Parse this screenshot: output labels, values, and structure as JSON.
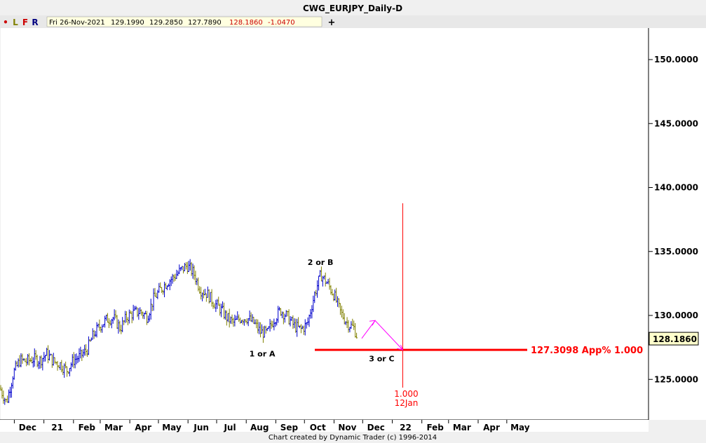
{
  "title": "CWG_EURJPY_Daily-D",
  "toolbar": {
    "buttons": [
      {
        "label": "•",
        "color": "#cc0000"
      },
      {
        "label": "L",
        "color": "#808000"
      },
      {
        "label": "F",
        "color": "#cc0000"
      },
      {
        "label": "R",
        "color": "#000080"
      }
    ],
    "quote": {
      "date": "Fri 26-Nov-2021",
      "open": "129.1990",
      "high": "129.2850",
      "low": "127.7890",
      "close": "128.1860",
      "change": "-1.0470"
    },
    "plus": "+"
  },
  "footer": "Chart created by Dynamic Trader  (c) 1996-2014",
  "colors": {
    "up_bar": "#0000cc",
    "down_bar": "#808000",
    "projection": "#ff0000",
    "time_line": "#ff0000",
    "zigzag": "#ff00ff",
    "current_price_box": "#ffffcc"
  },
  "chart_data": {
    "type": "ohlc",
    "title": "CWG_EURJPY_Daily-D",
    "y_axis": {
      "position": "right",
      "ylim": [
        121.5,
        150.5
      ],
      "tick_labels": [
        "125.0000",
        "130.0000",
        "135.0000",
        "140.0000",
        "145.0000",
        "150.0000"
      ]
    },
    "x_axis": {
      "tick_labels": [
        "Dec",
        "21",
        "Feb",
        "Mar",
        "Apr",
        "May",
        "Jun",
        "Jul",
        "Aug",
        "Sep",
        "Oct",
        "Nov",
        "Dec",
        "22",
        "Feb",
        "Mar",
        "Apr",
        "May"
      ]
    },
    "grid": false,
    "price_path": [
      {
        "date": "2020-11-16",
        "price": 124.3
      },
      {
        "date": "2020-11-23",
        "price": 123.2
      },
      {
        "date": "2020-11-30",
        "price": 125.5
      },
      {
        "date": "2020-12-07",
        "price": 126.5
      },
      {
        "date": "2020-12-14",
        "price": 126.4
      },
      {
        "date": "2020-12-21",
        "price": 126.6
      },
      {
        "date": "2020-12-28",
        "price": 126.5
      },
      {
        "date": "2021-01-04",
        "price": 127.0
      },
      {
        "date": "2021-01-11",
        "price": 126.4
      },
      {
        "date": "2021-01-18",
        "price": 126.2
      },
      {
        "date": "2021-01-25",
        "price": 125.7
      },
      {
        "date": "2021-02-01",
        "price": 126.5
      },
      {
        "date": "2021-02-08",
        "price": 126.8
      },
      {
        "date": "2021-02-15",
        "price": 127.3
      },
      {
        "date": "2021-02-22",
        "price": 128.5
      },
      {
        "date": "2021-03-01",
        "price": 129.2
      },
      {
        "date": "2021-03-08",
        "price": 129.7
      },
      {
        "date": "2021-03-15",
        "price": 129.8
      },
      {
        "date": "2021-03-22",
        "price": 129.0
      },
      {
        "date": "2021-03-29",
        "price": 129.9
      },
      {
        "date": "2021-04-05",
        "price": 130.2
      },
      {
        "date": "2021-04-12",
        "price": 130.3
      },
      {
        "date": "2021-04-19",
        "price": 129.9
      },
      {
        "date": "2021-04-26",
        "price": 131.3
      },
      {
        "date": "2021-05-03",
        "price": 132.0
      },
      {
        "date": "2021-05-10",
        "price": 132.6
      },
      {
        "date": "2021-05-17",
        "price": 133.0
      },
      {
        "date": "2021-05-24",
        "price": 133.5
      },
      {
        "date": "2021-05-31",
        "price": 133.9
      },
      {
        "date": "2021-06-07",
        "price": 133.3
      },
      {
        "date": "2021-06-14",
        "price": 132.0
      },
      {
        "date": "2021-06-21",
        "price": 131.7
      },
      {
        "date": "2021-06-28",
        "price": 131.0
      },
      {
        "date": "2021-07-05",
        "price": 130.5
      },
      {
        "date": "2021-07-12",
        "price": 129.8
      },
      {
        "date": "2021-07-19",
        "price": 129.4
      },
      {
        "date": "2021-07-26",
        "price": 129.8
      },
      {
        "date": "2021-08-02",
        "price": 129.8
      },
      {
        "date": "2021-08-09",
        "price": 129.4
      },
      {
        "date": "2021-08-16",
        "price": 128.7
      },
      {
        "date": "2021-08-23",
        "price": 128.6
      },
      {
        "date": "2021-08-30",
        "price": 129.7
      },
      {
        "date": "2021-09-06",
        "price": 130.4
      },
      {
        "date": "2021-09-13",
        "price": 129.9
      },
      {
        "date": "2021-09-20",
        "price": 129.2
      },
      {
        "date": "2021-09-27",
        "price": 128.9
      },
      {
        "date": "2021-10-04",
        "price": 129.3
      },
      {
        "date": "2021-10-11",
        "price": 131.5
      },
      {
        "date": "2021-10-18",
        "price": 133.2
      },
      {
        "date": "2021-10-25",
        "price": 132.5
      },
      {
        "date": "2021-11-01",
        "price": 131.6
      },
      {
        "date": "2021-11-08",
        "price": 130.2
      },
      {
        "date": "2021-11-15",
        "price": 129.4
      },
      {
        "date": "2021-11-22",
        "price": 129.0
      },
      {
        "date": "2021-11-26",
        "price": 128.186
      }
    ],
    "current_price": {
      "value": 128.186,
      "label": "128.1860"
    },
    "projection": {
      "price": 127.3098,
      "label": "127.3098 App% 1.000"
    },
    "time_target": {
      "date": "2022-01-12",
      "label_top": "1.000",
      "label_bottom": "12Jan"
    },
    "wave_labels": [
      {
        "text": "1 or A",
        "date": "2021-08-20",
        "price": 128.0
      },
      {
        "text": "2 or B",
        "date": "2021-10-20",
        "price": 133.4
      },
      {
        "text": "3 or C",
        "date": "2022-01-12",
        "price": 127.3
      }
    ],
    "zigzag": [
      {
        "date": "2021-11-30",
        "price": 128.2
      },
      {
        "date": "2021-12-14",
        "price": 129.6
      },
      {
        "date": "2022-01-12",
        "price": 127.3098
      }
    ]
  }
}
